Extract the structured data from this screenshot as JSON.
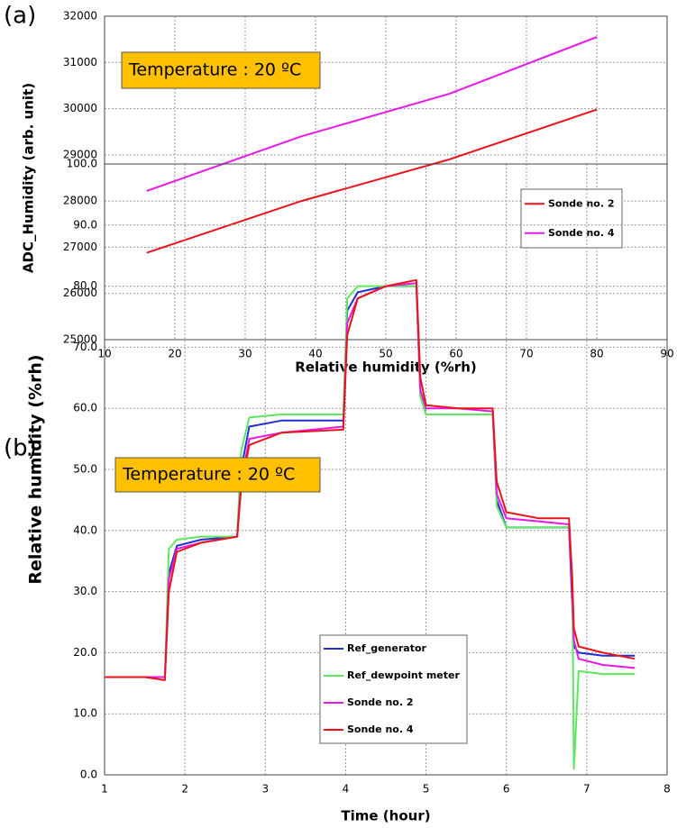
{
  "chart_data": [
    {
      "type": "line",
      "panel_label": "(a)",
      "annotation": "Temperature : 20 ºC",
      "x_label": "Relative humidity (%rh)",
      "y_label": "ADC_Humidity (arb. unit)",
      "x": [
        16,
        38,
        59,
        80
      ],
      "series": [
        {
          "name": "Sonde no. 2",
          "color": "#e8141c",
          "values": [
            26880,
            28000,
            28900,
            29980
          ]
        },
        {
          "name": "Sonde no. 4",
          "color": "#e619e6",
          "values": [
            28220,
            29400,
            30320,
            31550
          ]
        }
      ],
      "xlim": [
        10,
        90
      ],
      "xticks": [
        10,
        20,
        30,
        40,
        50,
        60,
        70,
        80,
        90
      ],
      "ylim": [
        25000,
        32000
      ],
      "yticks": [
        25000,
        26000,
        27000,
        28000,
        29000,
        30000,
        31000,
        32000
      ],
      "grid": true
    },
    {
      "type": "line",
      "panel_label": "(b)",
      "annotation": "Temperature : 20 ºC",
      "x_label": "Time (hour)",
      "y_label": "Relative  humidity  (%rh)",
      "x": [
        1,
        1.5,
        1.75,
        1.8,
        1.9,
        2.2,
        2.65,
        2.7,
        2.8,
        3.2,
        3.97,
        4.02,
        4.15,
        4.5,
        4.88,
        4.93,
        5.0,
        5.4,
        5.83,
        5.88,
        6.0,
        6.4,
        6.78,
        6.82,
        6.84,
        6.9,
        7.2,
        7.6
      ],
      "series": [
        {
          "name": "Ref_generator",
          "color": "#1f2fd0",
          "values": [
            16,
            16,
            16,
            33,
            37.5,
            38.5,
            39,
            50,
            57,
            58,
            58,
            76,
            79,
            80,
            80,
            62,
            59,
            59,
            59,
            45,
            40.5,
            40.5,
            40.5,
            28,
            21,
            20,
            19.5,
            19.5
          ]
        },
        {
          "name": "Ref_dewpoint meter",
          "color": "#5ee65e",
          "values": [
            16,
            16,
            16,
            37,
            38.5,
            39,
            39,
            53,
            58.5,
            59,
            59,
            78,
            80,
            80,
            80,
            62,
            59,
            59,
            59,
            44,
            40.5,
            40.5,
            40.5,
            33,
            1,
            17,
            16.5,
            16.5
          ]
        },
        {
          "name": "Sonde no. 2",
          "color": "#e619e6",
          "values": [
            16,
            16,
            16,
            32,
            37,
            38,
            39,
            48,
            55,
            56,
            57,
            74,
            78,
            80,
            80.5,
            63,
            60,
            60,
            59.5,
            46,
            42,
            41.5,
            41,
            30,
            22,
            19,
            18,
            17.5
          ]
        },
        {
          "name": "Sonde no. 4",
          "color": "#e8141c",
          "values": [
            16,
            16,
            15.5,
            30,
            36.5,
            38,
            39,
            47,
            54,
            56,
            56.5,
            72,
            78,
            80,
            81,
            65,
            60.5,
            60,
            60,
            48,
            43,
            42,
            42,
            32,
            24,
            21,
            20,
            19
          ]
        }
      ],
      "xlim": [
        1,
        8
      ],
      "xticks": [
        1,
        2,
        3,
        4,
        5,
        6,
        7,
        8
      ],
      "ylim": [
        0,
        100
      ],
      "yticks": [
        {
          "value": 0,
          "label": "0.0"
        },
        {
          "value": 10,
          "label": "10.0"
        },
        {
          "value": 20,
          "label": "20.0"
        },
        {
          "value": 30,
          "label": "30.0"
        },
        {
          "value": 40,
          "label": "40.0"
        },
        {
          "value": 50,
          "label": "50.0"
        },
        {
          "value": 60,
          "label": "60.0"
        },
        {
          "value": 70,
          "label": "70.0"
        },
        {
          "value": 80,
          "label": "80.0"
        },
        {
          "value": 90,
          "label": "90.0"
        },
        {
          "value": 100,
          "label": "100.0"
        }
      ],
      "grid": true
    }
  ]
}
